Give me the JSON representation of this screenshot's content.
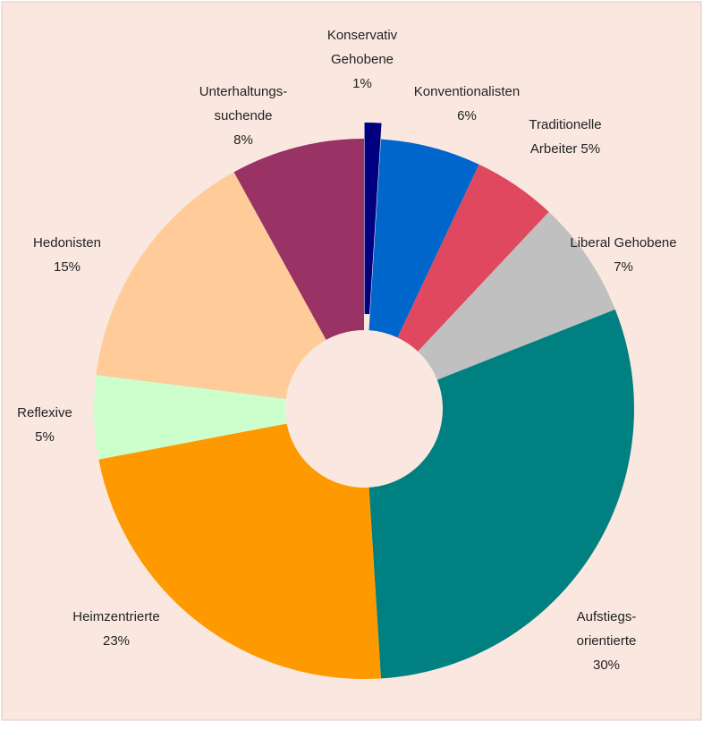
{
  "chart_data": {
    "type": "donut",
    "categories": [
      [
        "Konservativ",
        "Gehobene"
      ],
      [
        "Konventionalisten"
      ],
      [
        "Traditionelle",
        "Arbeiter"
      ],
      [
        "Liberal Gehobene"
      ],
      [
        "Aufstiegs-",
        "orientierte"
      ],
      [
        "Heimzentrierte"
      ],
      [
        "Reflexive"
      ],
      [
        "Hedonisten"
      ],
      [
        "Unterhaltungs-",
        "suchende"
      ]
    ],
    "values": [
      1,
      6,
      5,
      7,
      30,
      23,
      5,
      15,
      8
    ],
    "value_labels": [
      "1%",
      "6%",
      "5%",
      "7%",
      "30%",
      "23%",
      "5%",
      "15%",
      "8%"
    ],
    "colors": [
      "#000080",
      "#0066cc",
      "#e04860",
      "#c0c0c0",
      "#008080",
      "#ff9900",
      "#ccffcc",
      "#ffcc99",
      "#993366"
    ],
    "exploded": [
      0
    ]
  }
}
